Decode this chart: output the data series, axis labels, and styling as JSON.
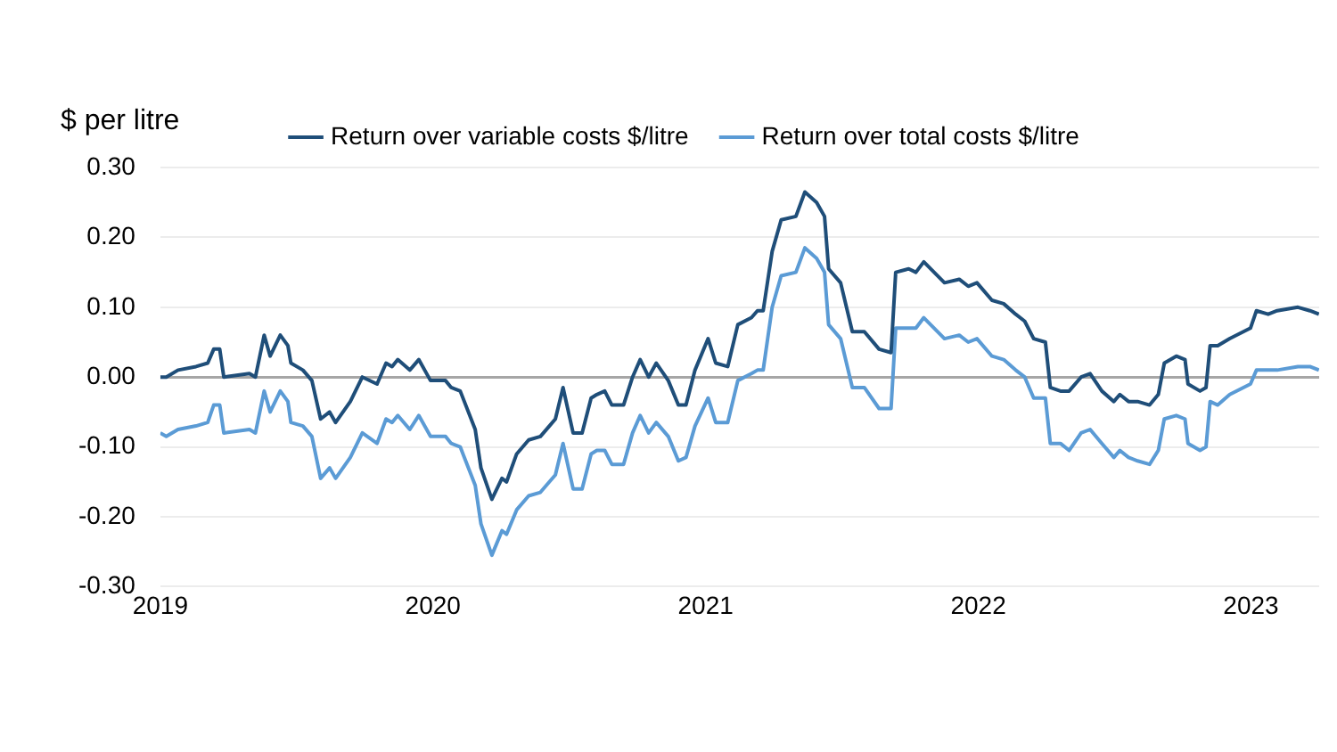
{
  "chart_data": {
    "type": "line",
    "ylabel": "$ per litre",
    "x": [
      2019.0,
      2019.022,
      2019.065,
      2019.131,
      2019.174,
      2019.196,
      2019.218,
      2019.233,
      2019.327,
      2019.349,
      2019.381,
      2019.403,
      2019.44,
      2019.468,
      2019.479,
      2019.523,
      2019.556,
      2019.588,
      2019.621,
      2019.643,
      2019.697,
      2019.741,
      2019.795,
      2019.828,
      2019.85,
      2019.871,
      2019.915,
      2019.948,
      2019.991,
      2020.046,
      2020.067,
      2020.1,
      2020.155,
      2020.176,
      2020.216,
      2020.253,
      2020.27,
      2020.307,
      2020.351,
      2020.394,
      2020.427,
      2020.449,
      2020.477,
      2020.514,
      2020.547,
      2020.58,
      2020.601,
      2020.63,
      2020.656,
      2020.699,
      2020.732,
      2020.76,
      2020.791,
      2020.819,
      2020.863,
      2020.9,
      2020.928,
      2020.961,
      2021.009,
      2021.037,
      2021.081,
      2021.118,
      2021.168,
      2021.19,
      2021.211,
      2021.244,
      2021.277,
      2021.331,
      2021.364,
      2021.407,
      2021.436,
      2021.451,
      2021.495,
      2021.538,
      2021.582,
      2021.636,
      2021.68,
      2021.697,
      2021.745,
      2021.771,
      2021.8,
      2021.876,
      2021.93,
      2021.963,
      2021.995,
      2022.05,
      2022.093,
      2022.137,
      2022.17,
      2022.203,
      2022.246,
      2022.264,
      2022.301,
      2022.333,
      2022.377,
      2022.41,
      2022.453,
      2022.497,
      2022.519,
      2022.551,
      2022.584,
      2022.628,
      2022.66,
      2022.682,
      2022.726,
      2022.758,
      2022.769,
      2022.813,
      2022.835,
      2022.85,
      2022.878,
      2022.922,
      2022.998,
      2023.02,
      2023.063,
      2023.096,
      2023.172,
      2023.216,
      2023.249
    ],
    "series": [
      {
        "name": "Return over variable costs $/litre",
        "color": "#1f4e79",
        "values": [
          0.0,
          0.0,
          0.01,
          0.015,
          0.02,
          0.04,
          0.04,
          0.0,
          0.005,
          0.0,
          0.06,
          0.03,
          0.06,
          0.045,
          0.02,
          0.01,
          -0.005,
          -0.06,
          -0.05,
          -0.065,
          -0.035,
          0.0,
          -0.01,
          0.02,
          0.015,
          0.025,
          0.01,
          0.025,
          -0.005,
          -0.005,
          -0.015,
          -0.02,
          -0.075,
          -0.13,
          -0.175,
          -0.145,
          -0.15,
          -0.11,
          -0.09,
          -0.085,
          -0.07,
          -0.06,
          -0.015,
          -0.08,
          -0.08,
          -0.03,
          -0.025,
          -0.02,
          -0.04,
          -0.04,
          0.0,
          0.025,
          0.0,
          0.02,
          -0.005,
          -0.04,
          -0.04,
          0.01,
          0.055,
          0.02,
          0.015,
          0.075,
          0.085,
          0.095,
          0.095,
          0.18,
          0.225,
          0.23,
          0.265,
          0.25,
          0.23,
          0.155,
          0.135,
          0.065,
          0.065,
          0.04,
          0.035,
          0.15,
          0.155,
          0.15,
          0.165,
          0.135,
          0.14,
          0.13,
          0.135,
          0.11,
          0.105,
          0.09,
          0.08,
          0.055,
          0.05,
          -0.015,
          -0.02,
          -0.02,
          0.0,
          0.005,
          -0.02,
          -0.035,
          -0.025,
          -0.035,
          -0.035,
          -0.04,
          -0.025,
          0.02,
          0.03,
          0.025,
          -0.01,
          -0.02,
          -0.015,
          0.045,
          0.045,
          0.055,
          0.07,
          0.095,
          0.09,
          0.095,
          0.1,
          0.095,
          0.09
        ]
      },
      {
        "name": "Return over total costs $/litre",
        "color": "#5b9bd5",
        "values": [
          -0.08,
          -0.085,
          -0.075,
          -0.07,
          -0.065,
          -0.04,
          -0.04,
          -0.08,
          -0.075,
          -0.08,
          -0.02,
          -0.05,
          -0.02,
          -0.035,
          -0.065,
          -0.07,
          -0.085,
          -0.145,
          -0.13,
          -0.145,
          -0.115,
          -0.08,
          -0.095,
          -0.06,
          -0.065,
          -0.055,
          -0.075,
          -0.055,
          -0.085,
          -0.085,
          -0.095,
          -0.1,
          -0.155,
          -0.21,
          -0.255,
          -0.22,
          -0.225,
          -0.19,
          -0.17,
          -0.165,
          -0.15,
          -0.14,
          -0.095,
          -0.16,
          -0.16,
          -0.11,
          -0.105,
          -0.105,
          -0.125,
          -0.125,
          -0.08,
          -0.055,
          -0.08,
          -0.065,
          -0.085,
          -0.12,
          -0.115,
          -0.07,
          -0.03,
          -0.065,
          -0.065,
          -0.005,
          0.005,
          0.01,
          0.01,
          0.1,
          0.145,
          0.15,
          0.185,
          0.17,
          0.15,
          0.075,
          0.055,
          -0.015,
          -0.015,
          -0.045,
          -0.045,
          0.07,
          0.07,
          0.07,
          0.085,
          0.055,
          0.06,
          0.05,
          0.055,
          0.03,
          0.025,
          0.01,
          0.0,
          -0.03,
          -0.03,
          -0.095,
          -0.095,
          -0.105,
          -0.08,
          -0.075,
          -0.095,
          -0.115,
          -0.105,
          -0.115,
          -0.12,
          -0.125,
          -0.105,
          -0.06,
          -0.055,
          -0.06,
          -0.095,
          -0.105,
          -0.1,
          -0.035,
          -0.04,
          -0.025,
          -0.01,
          0.01,
          0.01,
          0.01,
          0.015,
          0.015,
          0.01
        ]
      }
    ],
    "xlim": [
      2019,
      2023.25
    ],
    "xticks": [
      2019,
      2020,
      2021,
      2022,
      2023
    ],
    "ylim": [
      -0.3,
      0.3
    ],
    "yticks": [
      {
        "value": -0.3,
        "label": "-0.30"
      },
      {
        "value": -0.2,
        "label": "-0.20"
      },
      {
        "value": -0.1,
        "label": "-0.10"
      },
      {
        "value": 0,
        "label": "0.00"
      },
      {
        "value": 0.1,
        "label": "0.10"
      },
      {
        "value": 0.2,
        "label": "0.20"
      },
      {
        "value": 0.3,
        "label": "0.30"
      }
    ],
    "grid": "y",
    "legend": "top",
    "marker": "none",
    "line_style": "solid"
  }
}
